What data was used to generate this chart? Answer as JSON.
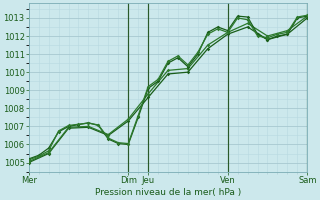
{
  "bg_color": "#cce8ec",
  "grid_color_major": "#a8c8d0",
  "grid_color_minor": "#b8d8e0",
  "line_color1": "#1a5e1a",
  "line_color2": "#2d7a2d",
  "x_tick_positions": [
    0,
    60,
    72,
    120,
    168
  ],
  "x_tick_labels": [
    "Mer",
    "Dim",
    "Jeu",
    "Ven",
    "Sam"
  ],
  "xlabel": "Pression niveau de la mer( hPa )",
  "ylim": [
    1004.5,
    1013.8
  ],
  "xlim": [
    0,
    168
  ],
  "yticks": [
    1005,
    1006,
    1007,
    1008,
    1009,
    1010,
    1011,
    1012,
    1013
  ],
  "vlines": [
    60,
    72,
    120,
    168
  ],
  "s1_x": [
    0,
    6,
    12,
    18,
    24,
    30,
    36,
    42,
    48,
    54,
    60,
    66,
    72,
    78,
    84,
    90,
    96,
    102,
    108,
    114,
    120,
    126,
    132,
    138,
    144,
    150,
    156,
    162,
    168
  ],
  "s1_y": [
    1005.2,
    1005.4,
    1005.8,
    1006.7,
    1007.0,
    1007.1,
    1007.2,
    1007.05,
    1006.3,
    1006.05,
    1006.0,
    1007.5,
    1009.1,
    1009.5,
    1010.5,
    1010.8,
    1010.3,
    1011.0,
    1012.2,
    1012.5,
    1012.3,
    1013.1,
    1013.05,
    1012.1,
    1011.8,
    1012.0,
    1012.1,
    1013.0,
    1013.1
  ],
  "s2_x": [
    0,
    6,
    12,
    18,
    24,
    30,
    36,
    42,
    48,
    54,
    60,
    66,
    72,
    78,
    84,
    90,
    96,
    102,
    108,
    114,
    120,
    126,
    132,
    138,
    144,
    150,
    156,
    162,
    168
  ],
  "s2_y": [
    1005.15,
    1005.35,
    1005.65,
    1006.75,
    1007.05,
    1007.12,
    1007.18,
    1007.08,
    1006.35,
    1006.1,
    1006.05,
    1007.6,
    1009.2,
    1009.6,
    1010.6,
    1010.9,
    1010.4,
    1011.1,
    1012.1,
    1012.4,
    1012.2,
    1013.0,
    1012.9,
    1012.0,
    1011.9,
    1012.1,
    1012.2,
    1013.05,
    1013.15
  ],
  "s3_x": [
    0,
    12,
    24,
    36,
    48,
    60,
    72,
    84,
    96,
    108,
    120,
    132,
    144,
    156,
    168
  ],
  "s3_y": [
    1005.0,
    1005.5,
    1006.9,
    1006.95,
    1006.5,
    1007.3,
    1008.6,
    1009.9,
    1010.0,
    1011.3,
    1012.1,
    1012.5,
    1011.8,
    1012.1,
    1013.0
  ],
  "s4_x": [
    0,
    12,
    24,
    36,
    48,
    60,
    72,
    84,
    96,
    108,
    120,
    132,
    144,
    156,
    168
  ],
  "s4_y": [
    1005.05,
    1005.55,
    1006.95,
    1007.0,
    1006.55,
    1007.4,
    1008.8,
    1010.1,
    1010.2,
    1011.5,
    1012.2,
    1012.7,
    1012.0,
    1012.3,
    1013.1
  ]
}
